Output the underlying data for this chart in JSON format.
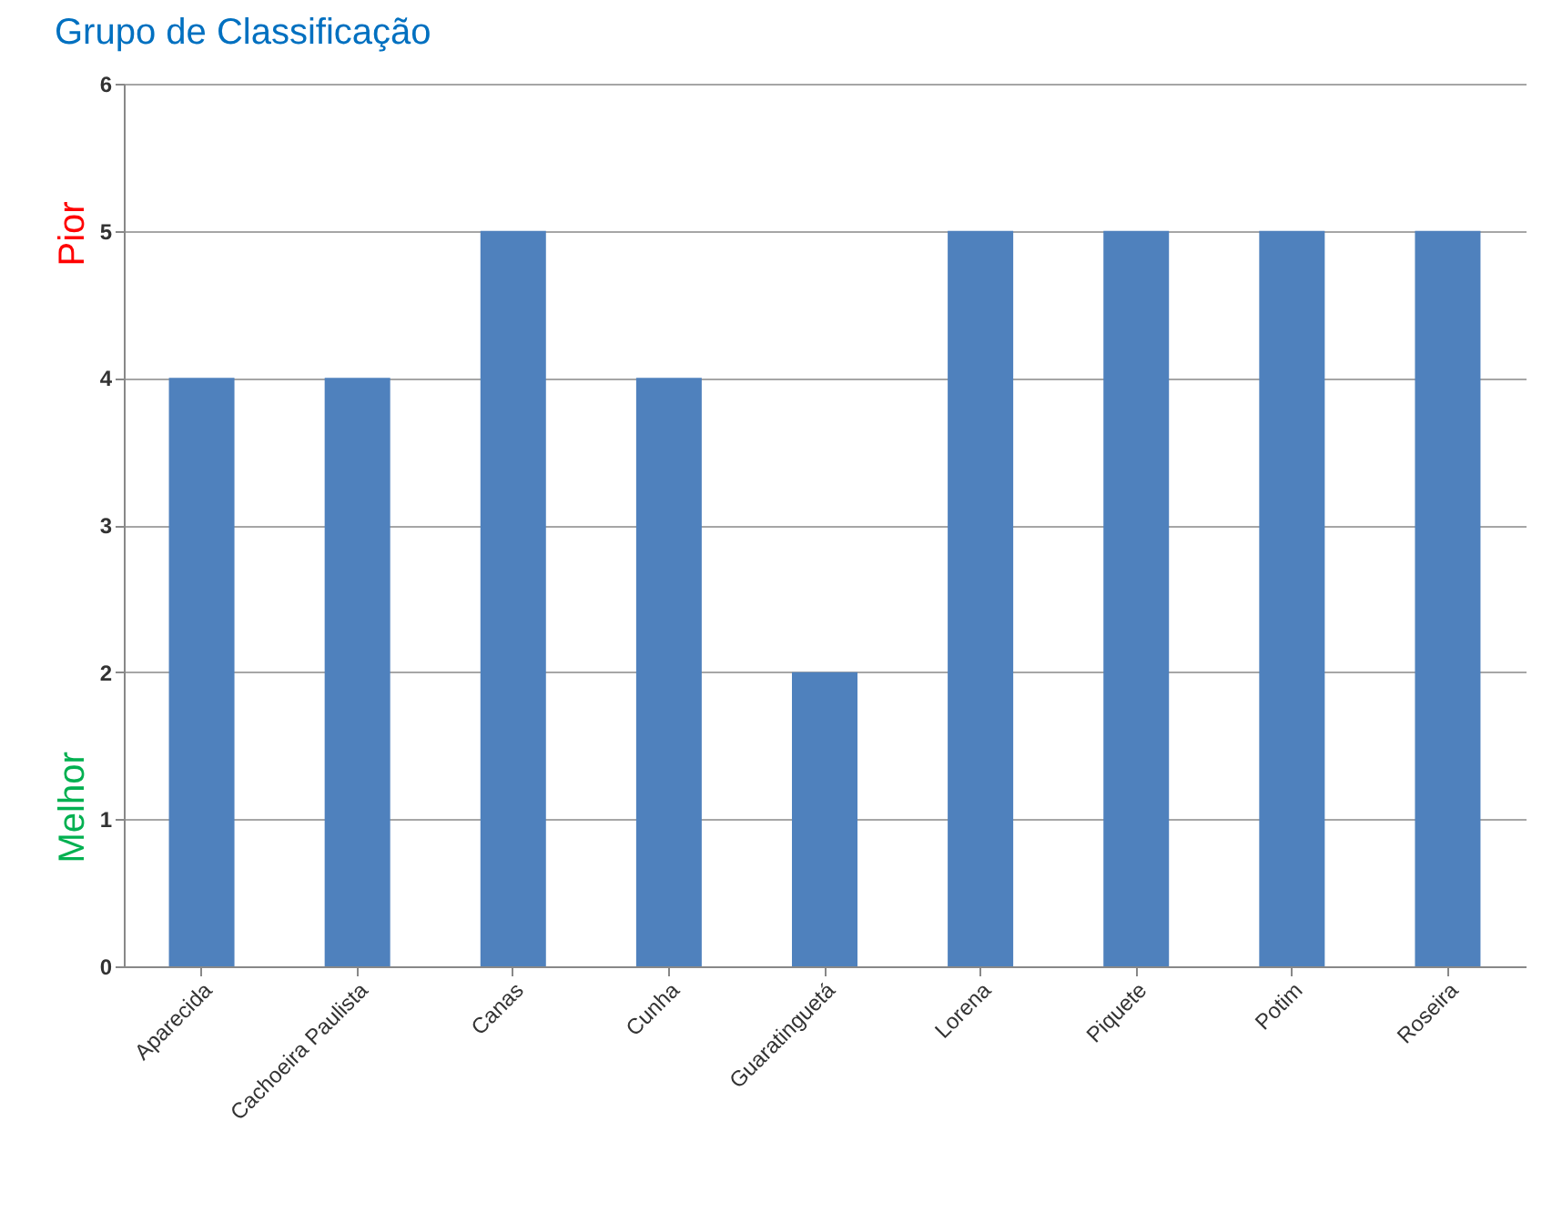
{
  "chart_data": {
    "type": "bar",
    "title": "Grupo de Classificação",
    "categories": [
      "Aparecida",
      "Cachoeira Paulista",
      "Canas",
      "Cunha",
      "Guaratinguetá",
      "Lorena",
      "Piquete",
      "Potim",
      "Roseira"
    ],
    "values": [
      4,
      4,
      5,
      4,
      2,
      5,
      5,
      5,
      5
    ],
    "color": "#4f81bd",
    "ylim": [
      0,
      6
    ],
    "yticks": [
      0,
      1,
      2,
      3,
      4,
      5,
      6
    ],
    "grid": "y",
    "annotations": [
      "Pior",
      "Melhor"
    ]
  }
}
